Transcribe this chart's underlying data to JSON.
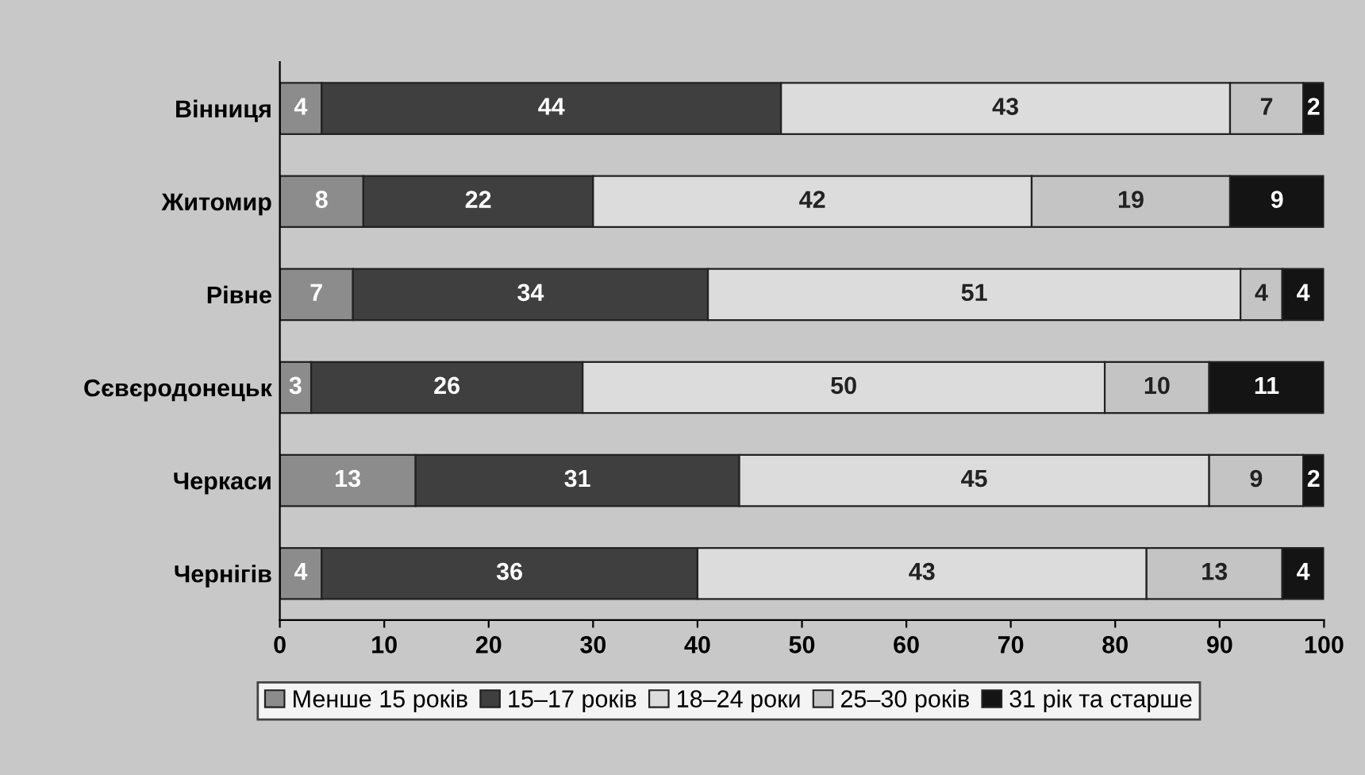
{
  "chart_data": {
    "type": "bar",
    "orientation": "horizontal",
    "stacked": true,
    "categories": [
      "Вінниця",
      "Житомир",
      "Рівне",
      "Сєвєродонецьк",
      "Черкаси",
      "Чернігів"
    ],
    "series": [
      {
        "name": "Менше 15 років",
        "color": "#8c8c8c",
        "values": [
          4,
          8,
          7,
          3,
          13,
          4
        ]
      },
      {
        "name": "15–17 років",
        "color": "#3f3f3f",
        "values": [
          44,
          22,
          34,
          26,
          31,
          36
        ]
      },
      {
        "name": "18–24 роки",
        "color": "#dcdcdc",
        "values": [
          43,
          42,
          51,
          50,
          45,
          43
        ]
      },
      {
        "name": "25–30 років",
        "color": "#c4c4c4",
        "values": [
          7,
          19,
          4,
          10,
          9,
          13
        ]
      },
      {
        "name": "31 рік та старше",
        "color": "#141414",
        "values": [
          2,
          9,
          4,
          11,
          2,
          4
        ]
      }
    ],
    "xlim": [
      0,
      100
    ],
    "xticks": [
      0,
      10,
      20,
      30,
      40,
      50,
      60,
      70,
      80,
      90,
      100
    ],
    "data_labels": true,
    "grid": false,
    "legend": "bottom"
  }
}
